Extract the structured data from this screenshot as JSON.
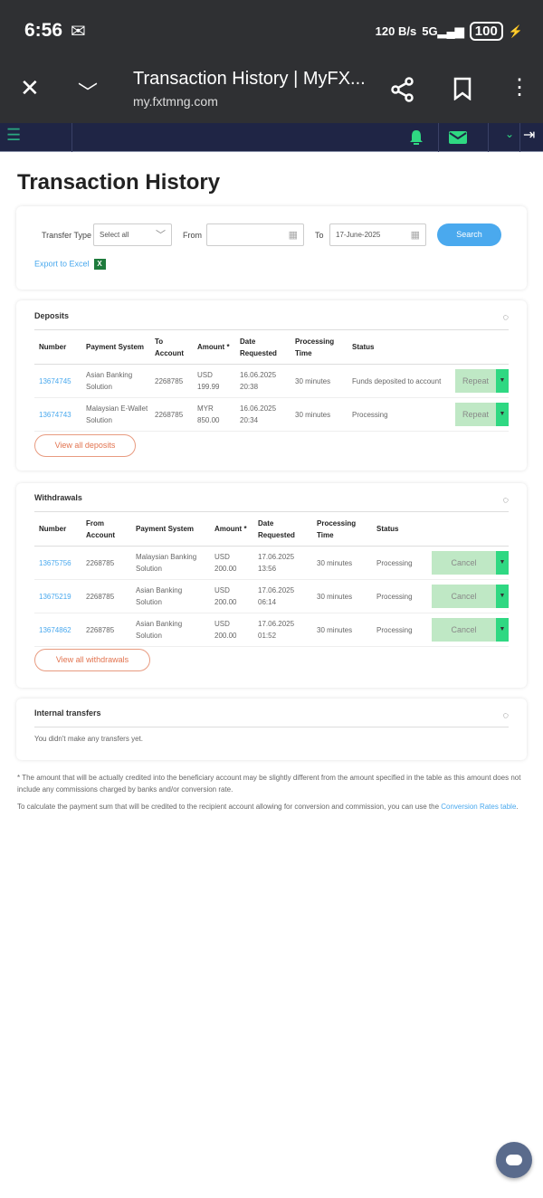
{
  "status_bar": {
    "time": "6:56",
    "net_speed": "120 B/s",
    "network": "5G",
    "battery": "100"
  },
  "browser": {
    "title": "Transaction History | MyFX...",
    "url": "my.fxtmng.com"
  },
  "page": {
    "title": "Transaction History"
  },
  "filters": {
    "transfer_type_label": "Transfer Type",
    "transfer_type_value": "Select all",
    "from_label": "From",
    "from_value": "",
    "to_label": "To",
    "to_value": "17-June-2025",
    "search": "Search",
    "export": "Export to Excel",
    "excel_icon_text": "X"
  },
  "deposits": {
    "title": "Deposits",
    "headers": [
      "Number",
      "Payment System",
      "To Account",
      "Amount *",
      "Date Requested",
      "Processing Time",
      "Status"
    ],
    "rows": [
      {
        "number": "13674745",
        "system": "Asian Banking Solution",
        "account": "2268785",
        "amount": "USD 199.99",
        "date": "16.06.2025 20:38",
        "time": "30 minutes",
        "status": "Funds deposited to account",
        "action": "Repeat"
      },
      {
        "number": "13674743",
        "system": "Malaysian E-Wallet Solution",
        "account": "2268785",
        "amount": "MYR 850.00",
        "date": "16.06.2025 20:34",
        "time": "30 minutes",
        "status": "Processing",
        "action": "Repeat"
      }
    ],
    "view_all": "View all deposits"
  },
  "withdrawals": {
    "title": "Withdrawals",
    "headers": [
      "Number",
      "From Account",
      "Payment System",
      "Amount *",
      "Date Requested",
      "Processing Time",
      "Status"
    ],
    "rows": [
      {
        "number": "13675756",
        "account": "2268785",
        "system": "Malaysian Banking Solution",
        "amount": "USD 200.00",
        "date": "17.06.2025 13:56",
        "time": "30 minutes",
        "status": "Processing",
        "action": "Cancel"
      },
      {
        "number": "13675219",
        "account": "2268785",
        "system": "Asian Banking Solution",
        "amount": "USD 200.00",
        "date": "17.06.2025 06:14",
        "time": "30 minutes",
        "status": "Processing",
        "action": "Cancel"
      },
      {
        "number": "13674862",
        "account": "2268785",
        "system": "Asian Banking Solution",
        "amount": "USD 200.00",
        "date": "17.06.2025 01:52",
        "time": "30 minutes",
        "status": "Processing",
        "action": "Cancel"
      }
    ],
    "view_all": "View all withdrawals"
  },
  "internal": {
    "title": "Internal transfers",
    "empty": "You didn't make any transfers yet."
  },
  "notes": {
    "note1": "* The amount that will be actually credited into the beneficiary account may be slightly different from the amount specified in the table as this amount does not include any commissions charged by banks and/or conversion rate.",
    "note2": "To calculate the payment sum that will be credited to the recipient account allowing for conversion and commission, you can use the ",
    "note2_link": "Conversion Rates table",
    "note2_end": "."
  },
  "colors": {
    "accent": "#4aa9ee",
    "green": "#2fd882",
    "nav": "#1f2545",
    "orange": "#e2734f"
  }
}
